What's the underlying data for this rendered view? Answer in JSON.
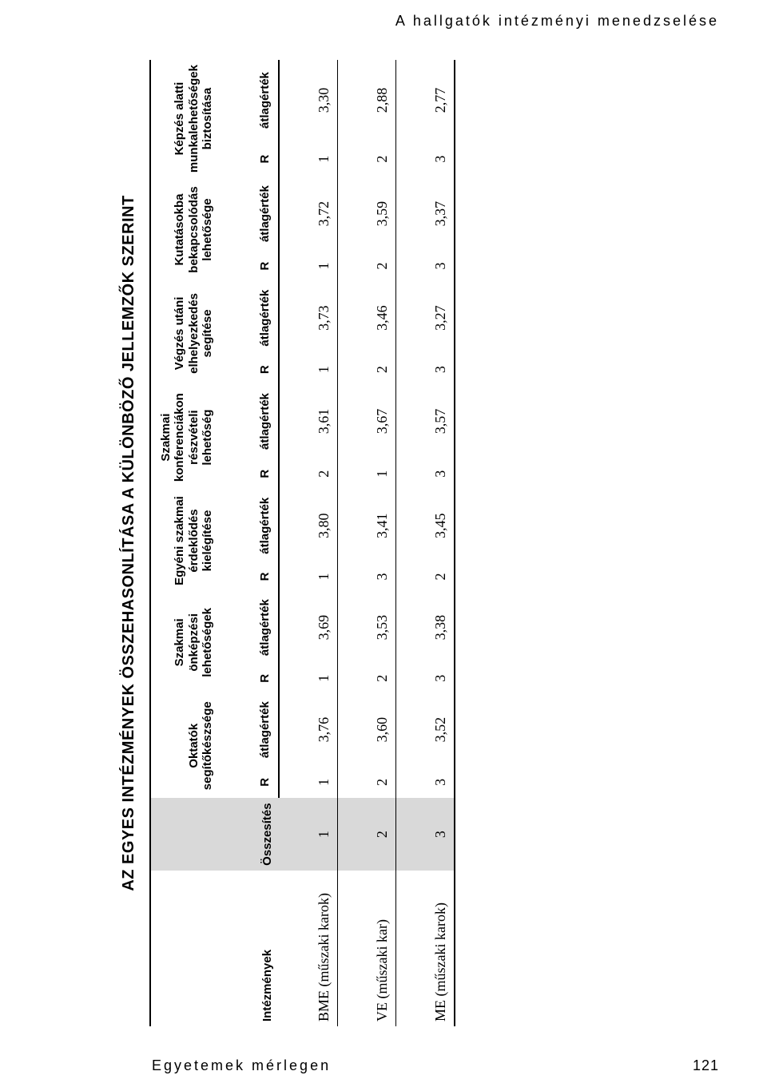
{
  "running_head": "A hallgatók intézményi menedzselése",
  "footer_left": "Egyetemek mérlegen",
  "footer_page": "121",
  "table": {
    "title": "AZ EGYES INTÉZMÉNYEK ÖSSZEHASONLÍTÁSA A KÜLÖNBÖZŐ JELLEMZŐK SZERINT",
    "head_institution": "Intézmények",
    "head_summary": "Összesítés",
    "sub_R": "R",
    "sub_val": "átlagérték",
    "criteria": [
      "Oktatók segítőkészsége",
      "Szakmai önképzési lehetőségek",
      "Egyéni szakmai érdeklődés kielégítése",
      "Szakmai konferenciákon részvételi lehetőség",
      "Végzés utáni elhelyezkedés segítése",
      "Kutatásokba bekapcsolódás lehetősége",
      "Képzés alatti munkalehetőségek biztosítása"
    ],
    "rows": [
      {
        "label": "BME (műszaki karok)",
        "sum": "1",
        "cells": [
          {
            "r": "1",
            "v": "3,76"
          },
          {
            "r": "1",
            "v": "3,69"
          },
          {
            "r": "1",
            "v": "3,80"
          },
          {
            "r": "2",
            "v": "3,61"
          },
          {
            "r": "1",
            "v": "3,73"
          },
          {
            "r": "1",
            "v": "3,72"
          },
          {
            "r": "1",
            "v": "3,30"
          }
        ]
      },
      {
        "label": "VE (műszaki kar)",
        "sum": "2",
        "cells": [
          {
            "r": "2",
            "v": "3,60"
          },
          {
            "r": "2",
            "v": "3,53"
          },
          {
            "r": "3",
            "v": "3,41"
          },
          {
            "r": "1",
            "v": "3,67"
          },
          {
            "r": "2",
            "v": "3,46"
          },
          {
            "r": "2",
            "v": "3,59"
          },
          {
            "r": "2",
            "v": "2,88"
          }
        ]
      },
      {
        "label": "ME (műszaki karok)",
        "sum": "3",
        "cells": [
          {
            "r": "3",
            "v": "3,52"
          },
          {
            "r": "3",
            "v": "3,38"
          },
          {
            "r": "2",
            "v": "3,45"
          },
          {
            "r": "3",
            "v": "3,57"
          },
          {
            "r": "3",
            "v": "3,27"
          },
          {
            "r": "3",
            "v": "3,37"
          },
          {
            "r": "3",
            "v": "2,77"
          }
        ]
      }
    ]
  },
  "style": {
    "grey": "#d9d9d9",
    "border": "#000000"
  }
}
